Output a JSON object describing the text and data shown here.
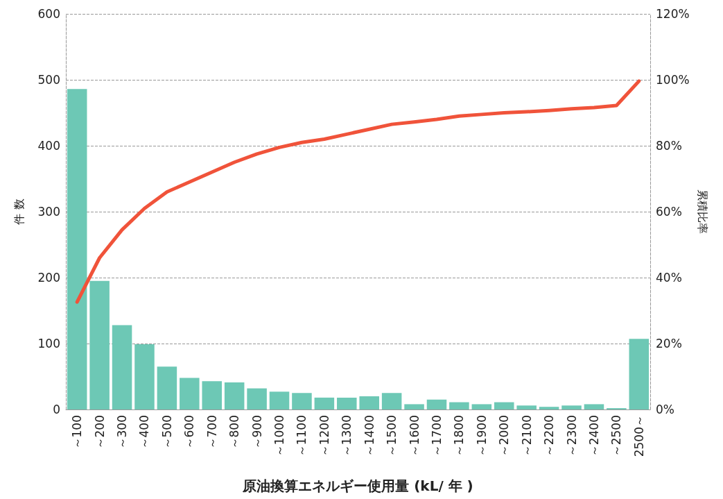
{
  "chart_data": {
    "type": "bar",
    "xlabel": "原油換算エネルギー使用量 (kL/ 年 )",
    "ylabel": "件 数",
    "y2label": "累積比率",
    "categories": [
      "～100",
      "～200",
      "～300",
      "～400",
      "～500",
      "～600",
      "～700",
      "～800",
      "～900",
      "～1000",
      "～1100",
      "～1200",
      "～1300",
      "～1400",
      "～1500",
      "～1600",
      "～1700",
      "～1800",
      "～1900",
      "～2000",
      "～2100",
      "～2200",
      "～2300",
      "～2400",
      "～2500",
      "2500～"
    ],
    "series": [
      {
        "color": "#6dc8b5",
        "values": [
          486,
          195,
          128,
          99,
          65,
          48,
          43,
          41,
          32,
          27,
          25,
          18,
          18,
          20,
          25,
          8,
          15,
          11,
          8,
          11,
          6,
          4,
          6,
          8,
          2,
          107
        ]
      },
      {
        "type": "line",
        "axis": "y2",
        "color": "#f0533a",
        "values": [
          32.6,
          46,
          54.5,
          61,
          66,
          69,
          72,
          75,
          77.5,
          79.5,
          81,
          82,
          83.5,
          85,
          86.5,
          87.2,
          88,
          89,
          89.5,
          90,
          90.3,
          90.7,
          91.2,
          91.6,
          92.2,
          99.6
        ]
      }
    ],
    "ylim": [
      0,
      600
    ],
    "yticks": [
      0,
      100,
      200,
      300,
      400,
      500,
      600
    ],
    "y2lim": [
      0,
      120
    ],
    "y2ticks": [
      {
        "value": 0,
        "label": "0%"
      },
      {
        "value": 20,
        "label": "20%"
      },
      {
        "value": 40,
        "label": "40%"
      },
      {
        "value": 60,
        "label": "60%"
      },
      {
        "value": 80,
        "label": "80%"
      },
      {
        "value": 100,
        "label": "100%"
      },
      {
        "value": 120,
        "label": "120%"
      }
    ],
    "grid": "y",
    "marker": "none",
    "line_style": "solid"
  }
}
